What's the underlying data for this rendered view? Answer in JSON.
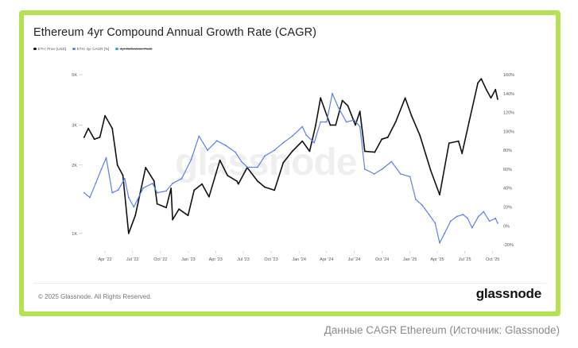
{
  "title": "Ethereum 4yr Compound Annual Growth Rate (CAGR)",
  "legend": [
    {
      "label": "ETH: Price [USD]",
      "color": "#111111"
    },
    {
      "label": "ETH: 4yr CAGR [%]",
      "color": "#5b7ff0"
    },
    {
      "label": "4yr Reference Point",
      "color": "#2aa7c9"
    }
  ],
  "footer": "© 2025 Glassnode. All Rights Reserved.",
  "logo": "glassnode",
  "watermark": "glassnode",
  "caption": "Данные CAGR Ethereum (Источник: Glassnode)",
  "chart_data": {
    "type": "line",
    "x_ticks": [
      "Apr '22",
      "Jul '22",
      "Oct '22",
      "Jan '23",
      "Apr '23",
      "Jul '23",
      "Oct '23",
      "Jan '24",
      "Apr '24",
      "Jul '24",
      "Oct '24",
      "Jan '25",
      "Apr '25",
      "Jul '25",
      "Oct '25"
    ],
    "y_left_ticks": [
      "5K",
      "3K",
      "2K",
      "1K"
    ],
    "y_left_scale": "log",
    "y_left_tick_values": [
      5000,
      3000,
      2000,
      1000
    ],
    "y_left_range": [
      850,
      5000
    ],
    "y_right_ticks": [
      "160%",
      "140%",
      "120%",
      "100%",
      "80%",
      "60%",
      "40%",
      "20%",
      "0%",
      "-20%"
    ],
    "y_right_range": [
      -25,
      160
    ],
    "x_range": [
      "2022-01-20",
      "2025-10-20"
    ],
    "grid": false,
    "legend_position": "top-left",
    "series": [
      {
        "name": "ETH: Price [USD]",
        "axis": "left",
        "color": "#111111",
        "x": [
          "2022-01-22",
          "2022-02-05",
          "2022-02-25",
          "2022-03-15",
          "2022-04-01",
          "2022-04-25",
          "2022-05-12",
          "2022-05-30",
          "2022-06-18",
          "2022-07-10",
          "2022-08-13",
          "2022-09-10",
          "2022-09-20",
          "2022-10-20",
          "2022-11-05",
          "2022-11-10",
          "2022-12-01",
          "2022-12-31",
          "2023-01-20",
          "2023-02-15",
          "2023-03-10",
          "2023-04-15",
          "2023-05-10",
          "2023-06-10",
          "2023-06-15",
          "2023-07-14",
          "2023-08-17",
          "2023-09-10",
          "2023-10-12",
          "2023-11-10",
          "2023-12-10",
          "2024-01-12",
          "2024-02-05",
          "2024-02-25",
          "2024-03-12",
          "2024-04-13",
          "2024-05-01",
          "2024-05-23",
          "2024-06-10",
          "2024-07-05",
          "2024-07-20",
          "2024-08-05",
          "2024-09-07",
          "2024-09-30",
          "2024-10-20",
          "2024-11-15",
          "2024-12-16",
          "2025-01-06",
          "2025-02-03",
          "2025-03-10",
          "2025-04-09",
          "2025-05-10",
          "2025-06-10",
          "2025-06-22",
          "2025-07-15",
          "2025-08-13",
          "2025-08-24",
          "2025-09-10",
          "2025-09-25",
          "2025-10-10",
          "2025-10-17"
        ],
        "values": [
          2650,
          2900,
          2600,
          2650,
          3300,
          2900,
          2000,
          1800,
          1000,
          1200,
          1950,
          1700,
          1350,
          1300,
          1580,
          1150,
          1280,
          1200,
          1550,
          1650,
          1450,
          2100,
          1800,
          1700,
          1650,
          1950,
          1700,
          1600,
          1550,
          2050,
          2300,
          2550,
          2300,
          3000,
          3950,
          3000,
          3000,
          3850,
          3650,
          3000,
          3450,
          2300,
          2280,
          2600,
          2650,
          3100,
          3950,
          3300,
          2700,
          1900,
          1480,
          2500,
          2550,
          2250,
          3100,
          4600,
          4800,
          4300,
          3950,
          4300,
          3900
        ]
      },
      {
        "name": "ETH: 4yr CAGR [%]",
        "axis": "right",
        "color": "#5b7ff0",
        "x": [
          "2022-01-22",
          "2022-02-10",
          "2022-03-01",
          "2022-03-20",
          "2022-04-05",
          "2022-04-25",
          "2022-05-15",
          "2022-06-05",
          "2022-06-18",
          "2022-07-05",
          "2022-08-05",
          "2022-09-05",
          "2022-09-20",
          "2022-10-20",
          "2022-11-10",
          "2022-12-10",
          "2023-01-10",
          "2023-02-05",
          "2023-03-05",
          "2023-04-05",
          "2023-05-05",
          "2023-06-05",
          "2023-06-25",
          "2023-07-15",
          "2023-08-17",
          "2023-09-10",
          "2023-10-12",
          "2023-11-10",
          "2023-12-10",
          "2024-01-12",
          "2024-01-25",
          "2024-02-20",
          "2024-03-12",
          "2024-04-01",
          "2024-04-20",
          "2024-05-10",
          "2024-06-05",
          "2024-07-01",
          "2024-07-20",
          "2024-08-05",
          "2024-09-05",
          "2024-10-01",
          "2024-11-01",
          "2024-12-01",
          "2025-01-01",
          "2025-01-20",
          "2025-02-10",
          "2025-03-05",
          "2025-03-25",
          "2025-04-09",
          "2025-04-25",
          "2025-05-15",
          "2025-06-05",
          "2025-06-25",
          "2025-07-10",
          "2025-07-25",
          "2025-08-15",
          "2025-09-01",
          "2025-09-20",
          "2025-10-10",
          "2025-10-17"
        ],
        "values": [
          35,
          30,
          45,
          60,
          72,
          35,
          38,
          50,
          30,
          20,
          40,
          45,
          35,
          37,
          45,
          50,
          70,
          95,
          80,
          90,
          85,
          78,
          68,
          62,
          62,
          74,
          80,
          88,
          95,
          105,
          96,
          88,
          110,
          110,
          140,
          125,
          110,
          112,
          105,
          60,
          55,
          60,
          68,
          55,
          52,
          28,
          22,
          12,
          3,
          -18,
          -8,
          5,
          10,
          12,
          8,
          -2,
          10,
          15,
          5,
          8,
          3
        ]
      }
    ]
  }
}
